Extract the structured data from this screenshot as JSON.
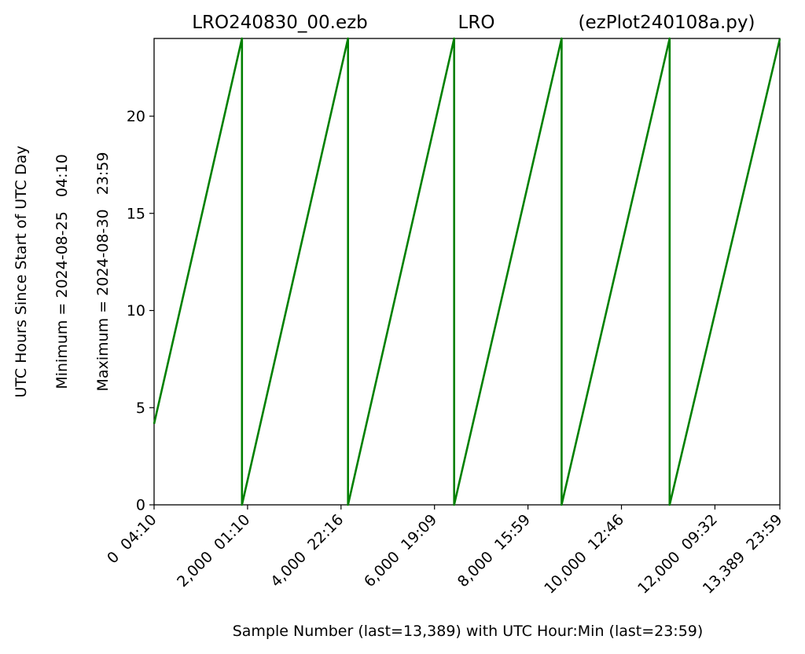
{
  "chart_data": {
    "type": "line",
    "title_left": "LRO240830_00.ezb",
    "title_center": "LRO",
    "title_right": "(ezPlot240108a.py)",
    "xlabel": "Sample Number (last=13,389) with UTC Hour:Min (last=23:59)",
    "ylabel": "UTC Hours Since Start of UTC Day",
    "ylabel_min": "Minimum = 2024-08-25   04:10",
    "ylabel_max": "Maximum = 2024-08-30   23:59",
    "xlim": [
      0,
      13389
    ],
    "ylim": [
      0,
      24
    ],
    "yticks": [
      0,
      5,
      10,
      15,
      20
    ],
    "xticks": [
      {
        "value": 0,
        "label": "0  04:10"
      },
      {
        "value": 2000,
        "label": "2,000  01:10"
      },
      {
        "value": 4000,
        "label": "4,000  22:16"
      },
      {
        "value": 6000,
        "label": "6,000  19:09"
      },
      {
        "value": 8000,
        "label": "8,000  15:59"
      },
      {
        "value": 10000,
        "label": "10,000  12:46"
      },
      {
        "value": 12000,
        "label": "12,000  09:32"
      },
      {
        "value": 13389,
        "label": "13,389  23:59"
      }
    ],
    "series": [
      {
        "color": "#008000",
        "x": [
          0,
          1880,
          1880,
          4150,
          4150,
          6420,
          6420,
          8720,
          8720,
          11030,
          11030,
          13389
        ],
        "y": [
          4.17,
          24,
          0,
          24,
          0,
          24,
          0,
          24,
          0,
          24,
          0,
          23.98
        ]
      }
    ]
  }
}
